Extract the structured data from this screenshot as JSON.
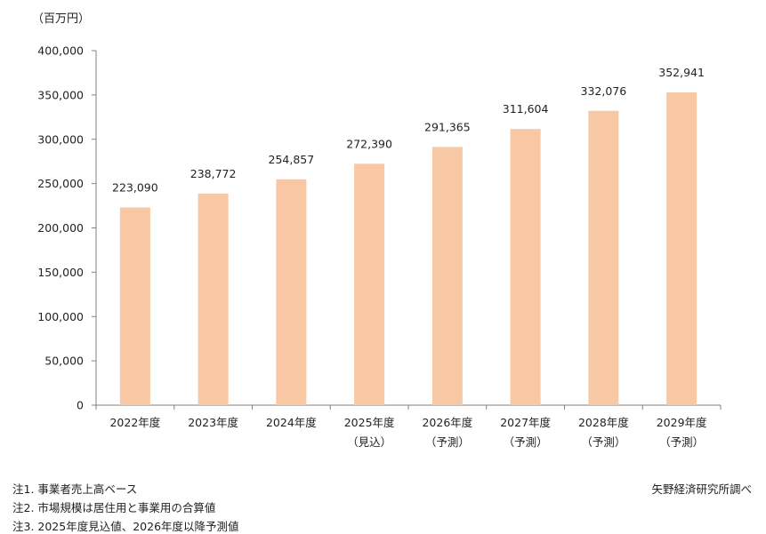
{
  "unit_label": "（百万円）",
  "notes": [
    "注1. 事業者売上高ベース",
    "注2. 市場規模は居住用と事業用の合算値",
    "注3. 2025年度見込値、2026年度以降予測値"
  ],
  "source": "矢野経済研究所調べ",
  "colors": {
    "bar": "#f8c8a5",
    "axis": "#808080"
  },
  "chart_data": {
    "type": "bar",
    "categories": [
      [
        "2022年度"
      ],
      [
        "2023年度"
      ],
      [
        "2024年度"
      ],
      [
        "2025年度",
        "（見込）"
      ],
      [
        "2026年度",
        "（予測）"
      ],
      [
        "2027年度",
        "（予測）"
      ],
      [
        "2028年度",
        "（予測）"
      ],
      [
        "2029年度",
        "（予測）"
      ]
    ],
    "values": [
      223090,
      238772,
      254857,
      272390,
      291365,
      311604,
      332076,
      352941
    ],
    "data_labels": [
      "223,090",
      "238,772",
      "254,857",
      "272,390",
      "291,365",
      "311,604",
      "332,076",
      "352,941"
    ],
    "ylim": [
      0,
      400000
    ],
    "yticks": [
      0,
      50000,
      100000,
      150000,
      200000,
      250000,
      300000,
      350000,
      400000
    ],
    "ytick_labels": [
      "0",
      "50,000",
      "100,000",
      "150,000",
      "200,000",
      "250,000",
      "300,000",
      "350,000",
      "400,000"
    ],
    "grid": false,
    "legend": "none"
  }
}
